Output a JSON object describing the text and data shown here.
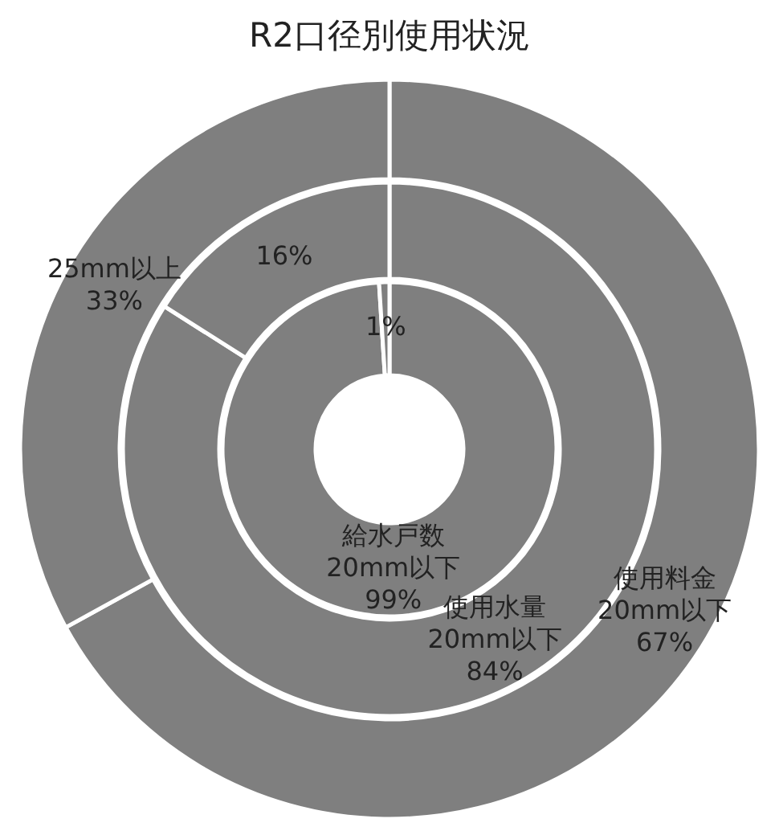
{
  "chart_data": [
    {
      "type": "donut",
      "title": "R2口径別使用状況",
      "categories": [
        "20mm以下",
        "25mm以上"
      ],
      "series": [
        {
          "name": "使用料金",
          "colors": [
            "#7f7f7f",
            "#7f7f7f"
          ],
          "values": [
            67,
            33
          ],
          "value_labels": [
            "67%",
            "33%"
          ]
        }
      ],
      "legend": false
    },
    {
      "type": "donut",
      "categories": [
        "20mm以下",
        null
      ],
      "series": [
        {
          "name": "使用水量",
          "colors": [
            "#7f7f7f",
            "#7f7f7f"
          ],
          "values": [
            84,
            16
          ],
          "value_labels": [
            "84%",
            "16%"
          ]
        }
      ],
      "legend": false
    },
    {
      "type": "donut",
      "categories": [
        "20mm以下",
        null
      ],
      "series": [
        {
          "name": "給水戸数",
          "colors": [
            "#7f7f7f",
            "#7f7f7f"
          ],
          "values": [
            99,
            1
          ],
          "value_labels": [
            "99%",
            "1%"
          ]
        }
      ],
      "legend": false
    }
  ]
}
